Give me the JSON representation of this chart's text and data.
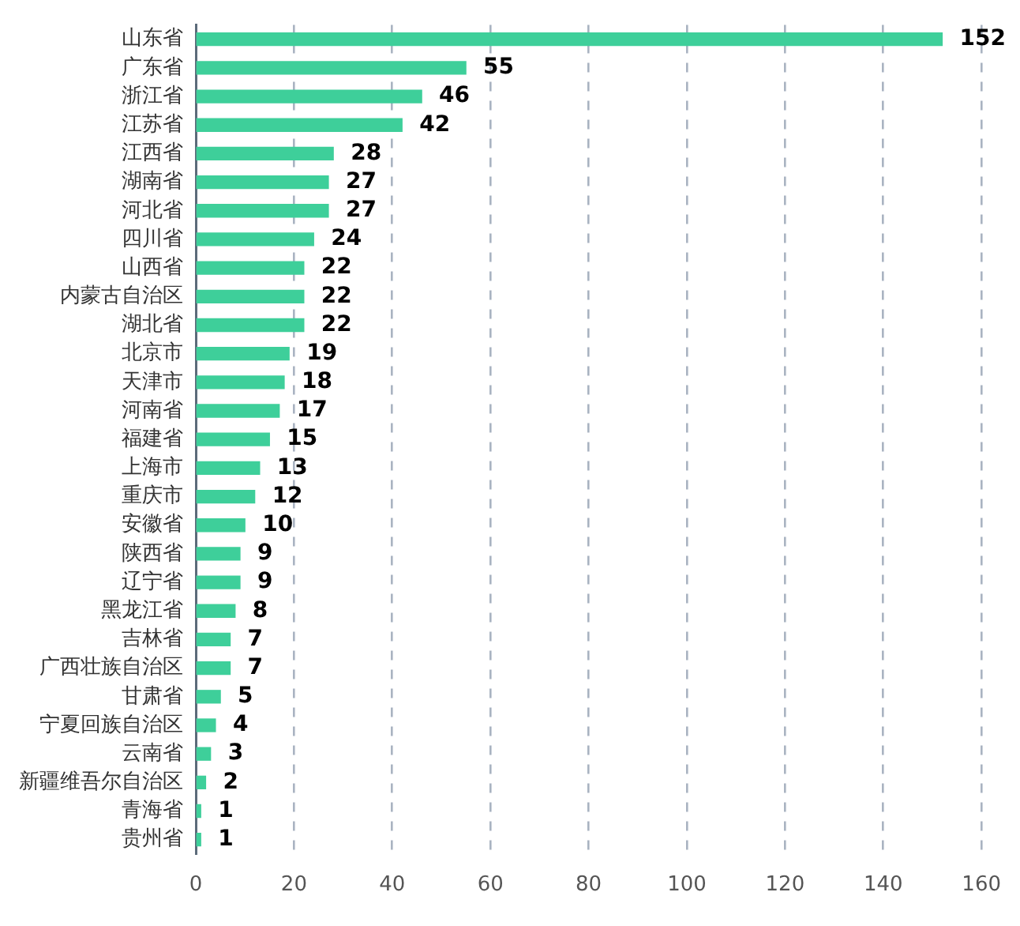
{
  "chart_data": {
    "type": "bar",
    "orientation": "horizontal",
    "categories": [
      "山东省",
      "广东省",
      "浙江省",
      "江苏省",
      "江西省",
      "湖南省",
      "河北省",
      "四川省",
      "山西省",
      "内蒙古自治区",
      "湖北省",
      "北京市",
      "天津市",
      "河南省",
      "福建省",
      "上海市",
      "重庆市",
      "安徽省",
      "陕西省",
      "辽宁省",
      "黑龙江省",
      "吉林省",
      "广西壮族自治区",
      "甘肃省",
      "宁夏回族自治区",
      "云南省",
      "新疆维吾尔自治区",
      "青海省",
      "贵州省"
    ],
    "values": [
      152,
      55,
      46,
      42,
      28,
      27,
      27,
      24,
      22,
      22,
      22,
      19,
      18,
      17,
      15,
      13,
      12,
      10,
      9,
      9,
      8,
      7,
      7,
      5,
      4,
      3,
      2,
      1,
      1
    ],
    "color": "#3ecf9a",
    "xlim": [
      0,
      160
    ],
    "xticks": [
      0,
      20,
      40,
      60,
      80,
      100,
      120,
      140,
      160
    ],
    "grid": "x",
    "data_labels": true
  }
}
